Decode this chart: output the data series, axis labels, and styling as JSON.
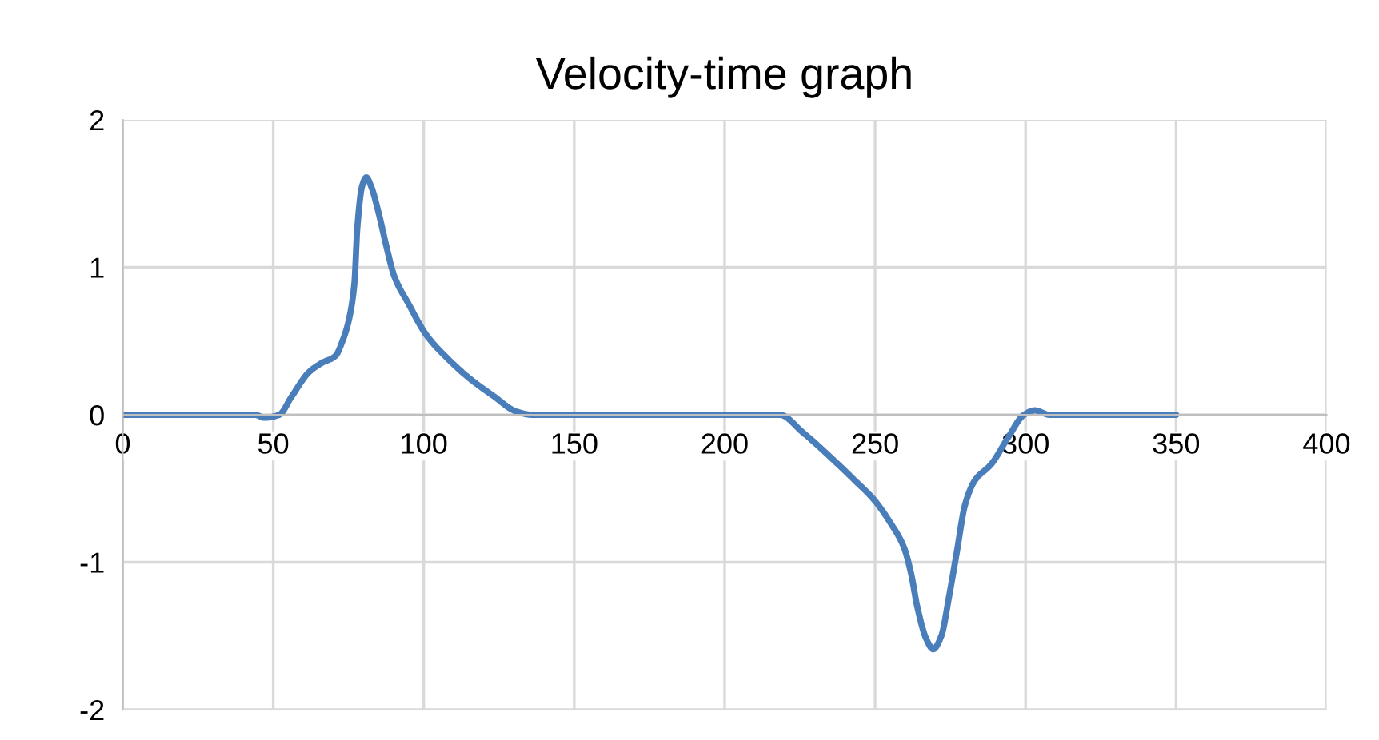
{
  "chart_data": {
    "type": "line",
    "title": "Velocity-time graph",
    "series": [
      {
        "color": "#4a7ebb",
        "x": [
          0,
          20,
          40,
          44,
          47,
          52,
          56,
          61.9,
          66,
          70.7,
          73,
          75.2,
          77,
          77.9,
          79.5,
          80.9,
          82.5,
          85,
          87.5,
          90.2,
          95,
          100.9,
          108,
          115,
          123,
          131,
          136,
          160,
          200,
          218.3,
          226,
          237.4,
          243,
          249.8,
          255,
          259.6,
          262,
          264,
          267,
          269.3,
          272,
          274.6,
          277,
          279.9,
          283,
          288.8,
          294,
          299.5,
          303,
          308,
          330,
          350
        ],
        "values": [
          0,
          0,
          0,
          0,
          -0.02,
          0,
          0.12,
          0.29,
          0.35,
          0.4,
          0.5,
          0.65,
          0.9,
          1.26,
          1.55,
          1.61,
          1.55,
          1.37,
          1.15,
          0.94,
          0.75,
          0.54,
          0.38,
          0.25,
          0.13,
          0.02,
          0,
          0,
          0,
          0,
          -0.12,
          -0.33,
          -0.44,
          -0.58,
          -0.73,
          -0.9,
          -1.08,
          -1.3,
          -1.52,
          -1.59,
          -1.5,
          -1.23,
          -0.95,
          -0.61,
          -0.45,
          -0.33,
          -0.16,
          0,
          0.03,
          0,
          0,
          0
        ]
      }
    ],
    "xlim": [
      0,
      400
    ],
    "xticks": [
      0,
      50,
      100,
      150,
      200,
      250,
      300,
      350,
      400
    ],
    "ylim": [
      -2,
      2
    ],
    "yticks": [
      -2,
      -1,
      0,
      1,
      2
    ],
    "grid": true,
    "marker": "none",
    "line_style": "solid"
  }
}
